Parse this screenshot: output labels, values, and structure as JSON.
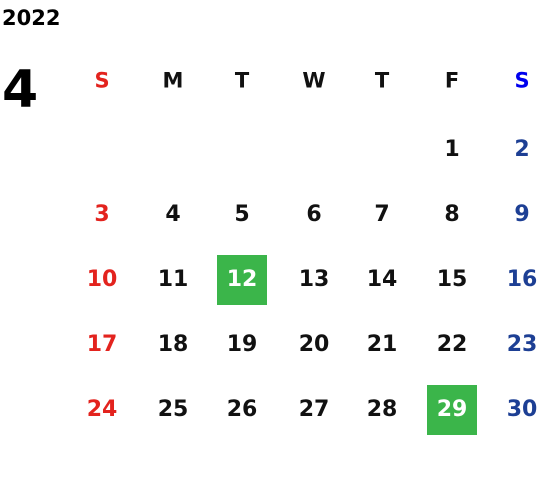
{
  "year": "2022",
  "month": "4",
  "weekdays": [
    "S",
    "M",
    "T",
    "W",
    "T",
    "F",
    "S"
  ],
  "colors": {
    "sunday": "#e3231e",
    "saturday_header": "#0000ee",
    "saturday": "#1d3f94",
    "weekday": "#111111",
    "highlight_text": "#ffffff"
  },
  "weeks": [
    [
      null,
      null,
      null,
      null,
      null,
      {
        "day": "1"
      },
      {
        "day": "2"
      }
    ],
    [
      {
        "day": "3"
      },
      {
        "day": "4"
      },
      {
        "day": "5"
      },
      {
        "day": "6"
      },
      {
        "day": "7"
      },
      {
        "day": "8"
      },
      {
        "day": "9"
      }
    ],
    [
      {
        "day": "10"
      },
      {
        "day": "11"
      },
      {
        "day": "12",
        "highlight": "#3bb54a"
      },
      {
        "day": "13"
      },
      {
        "day": "14"
      },
      {
        "day": "15"
      },
      {
        "day": "16"
      }
    ],
    [
      {
        "day": "17"
      },
      {
        "day": "18"
      },
      {
        "day": "19"
      },
      {
        "day": "20"
      },
      {
        "day": "21"
      },
      {
        "day": "22"
      },
      {
        "day": "23"
      }
    ],
    [
      {
        "day": "24"
      },
      {
        "day": "25"
      },
      {
        "day": "26"
      },
      {
        "day": "27"
      },
      {
        "day": "28"
      },
      {
        "day": "29",
        "highlight": "#3bb54a"
      },
      {
        "day": "30"
      }
    ]
  ]
}
